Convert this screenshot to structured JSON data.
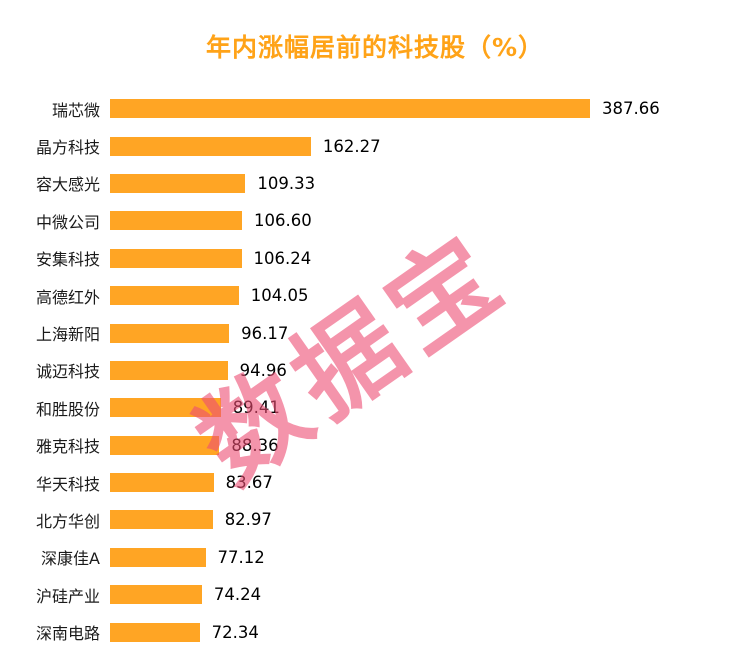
{
  "chart_data": {
    "type": "bar",
    "orientation": "horizontal",
    "title": "年内涨幅居前的科技股（%）",
    "categories": [
      "瑞芯微",
      "晶方科技",
      "容大感光",
      "中微公司",
      "安集科技",
      "高德红外",
      "上海新阳",
      "诚迈科技",
      "和胜股份",
      "雅克科技",
      "华天科技",
      "北方华创",
      "深康佳A",
      "沪硅产业",
      "深南电路"
    ],
    "values": [
      387.66,
      162.27,
      109.33,
      106.6,
      106.24,
      104.05,
      96.17,
      94.96,
      89.41,
      88.36,
      83.67,
      82.97,
      77.12,
      74.24,
      72.34
    ],
    "xlabel": "",
    "ylabel": "",
    "xlim": [
      0,
      387.66
    ],
    "grid": "off",
    "legend": "none",
    "bar_color": "#FFA524",
    "value_labels": "right-of-bar, 2 decimal places"
  },
  "watermark": {
    "text": "数据宝",
    "color": "#EE4E74"
  },
  "colors": {
    "title": "#FFA318",
    "bar": "#FFA524",
    "text": "#1a1a1a",
    "background": "#ffffff"
  }
}
